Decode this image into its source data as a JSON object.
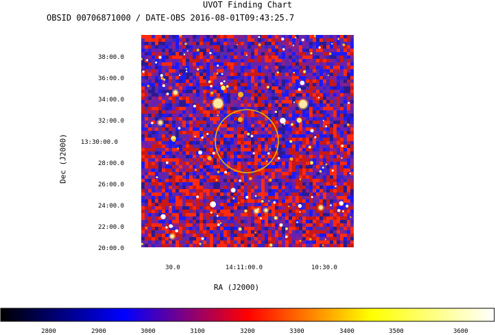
{
  "header": {
    "title": "UVOT Finding Chart",
    "subtitle": "OBSID 00706871000 / DATE-OBS 2016-08-01T09:43:25.7"
  },
  "chart_data": {
    "type": "heatmap",
    "title": "UVOT Finding Chart",
    "subtitle": "OBSID 00706871000 / DATE-OBS 2016-08-01T09:43:25.7",
    "xlabel": "RA (J2000)",
    "ylabel": "Dec (J2000)",
    "x_ticks": [
      "30.0",
      "14:11:00.0",
      "10:30.0"
    ],
    "y_ticks": [
      "38:00.0",
      "36:00.0",
      "34:00.0",
      "32:00.0",
      "13:30:00.0",
      "28:00.0",
      "26:00.0",
      "24:00.0",
      "22:00.0",
      "20:00.0"
    ],
    "colorbar": {
      "ticks": [
        "2800",
        "2900",
        "3000",
        "3100",
        "3200",
        "3300",
        "3400",
        "3500",
        "3600"
      ],
      "colormap": [
        "#000000",
        "#0000ff",
        "#ff0000",
        "#ffff00",
        "#ffffff"
      ]
    },
    "circle_color": "#e6b800"
  }
}
